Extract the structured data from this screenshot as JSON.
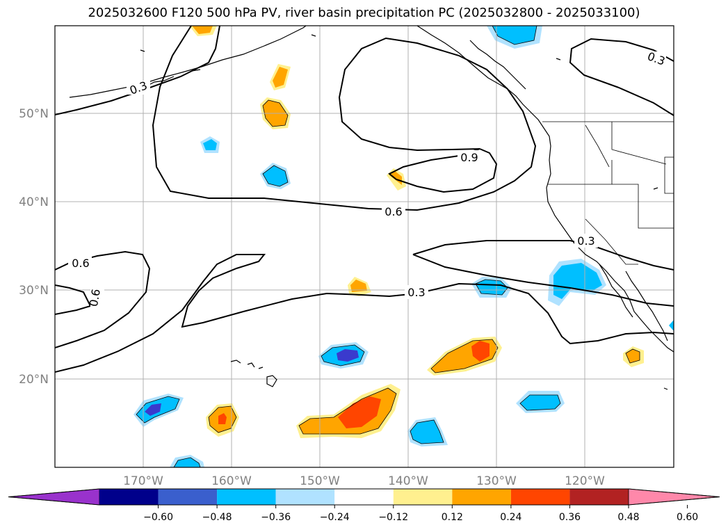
{
  "title": "2025032600 F120 500 hPa PV, river basin precipitation PC (2025032800 - 2025033100)",
  "axes": {
    "lon_labels": [
      "170°W",
      "160°W",
      "150°W",
      "140°W",
      "130°W",
      "120°W"
    ],
    "lat_labels": [
      "50°N",
      "40°N",
      "30°N",
      "20°N"
    ]
  },
  "contours": {
    "labels": [
      "0.3",
      "0.3",
      "0.9",
      "0.6",
      "0.6",
      "0.6",
      "0.3",
      "0.3"
    ]
  },
  "colorbar": {
    "ticks": [
      "−0.60",
      "−0.48",
      "−0.36",
      "−0.24",
      "−0.12",
      "0.12",
      "0.24",
      "0.36",
      "0.48",
      "0.60"
    ],
    "colors": [
      "#9932cc",
      "#00008b",
      "#3a5fcd",
      "#00bfff",
      "#b0e2ff",
      "#ffffff",
      "#fff08f",
      "#ffa500",
      "#ff4500",
      "#b22222",
      "#ff88aa"
    ]
  },
  "colors": {
    "neg_strong": "#3a3acd",
    "neg_mid": "#00bfff",
    "neg_light": "#b0e2ff",
    "pos_light": "#fff08f",
    "pos_mid": "#ffa500",
    "pos_strong": "#ff4500",
    "grid": "#b0b0b0"
  }
}
